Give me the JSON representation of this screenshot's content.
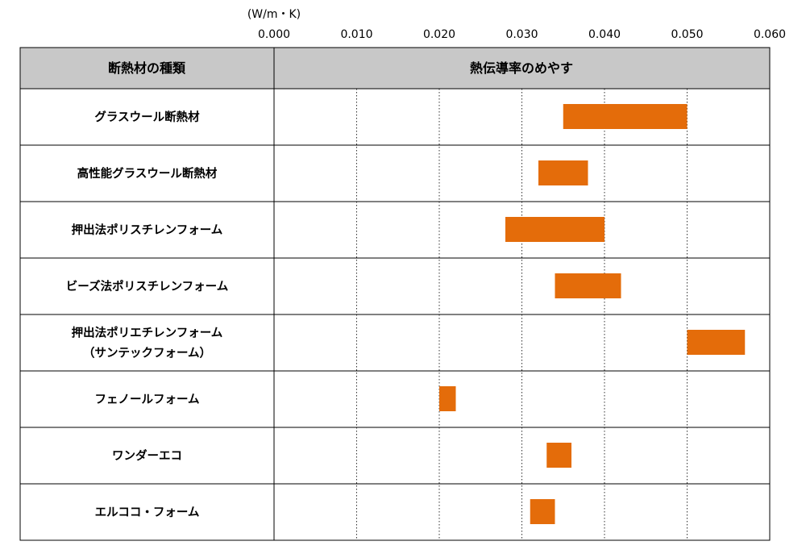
{
  "chart_data": {
    "type": "bar",
    "orientation": "horizontal",
    "bar_style": "floating-range",
    "unit_label": "(W/m・K)",
    "x_ticks": [
      "0.000",
      "0.010",
      "0.020",
      "0.030",
      "0.040",
      "0.050",
      "0.060"
    ],
    "xlim": [
      0,
      0.06
    ],
    "header_category": "断熱材の種類",
    "header_value": "熱伝導率のめやす",
    "bar_color": "#E46C0A",
    "gridlines": "dotted-vertical",
    "categories": [
      [
        "グラスウール断熱材"
      ],
      [
        "高性能グラスウール断熱材"
      ],
      [
        "押出法ポリスチレンフォーム"
      ],
      [
        "ビーズ法ポリスチレンフォーム"
      ],
      [
        "押出法ポリエチレンフォーム",
        "（サンテックフォーム）"
      ],
      [
        "フェノールフォーム"
      ],
      [
        "ワンダーエコ"
      ],
      [
        "エルココ・フォーム"
      ]
    ],
    "ranges": [
      [
        0.035,
        0.05
      ],
      [
        0.032,
        0.038
      ],
      [
        0.028,
        0.04
      ],
      [
        0.034,
        0.042
      ],
      [
        0.05,
        0.057
      ],
      [
        0.02,
        0.022
      ],
      [
        0.033,
        0.036
      ],
      [
        0.031,
        0.034
      ]
    ]
  }
}
